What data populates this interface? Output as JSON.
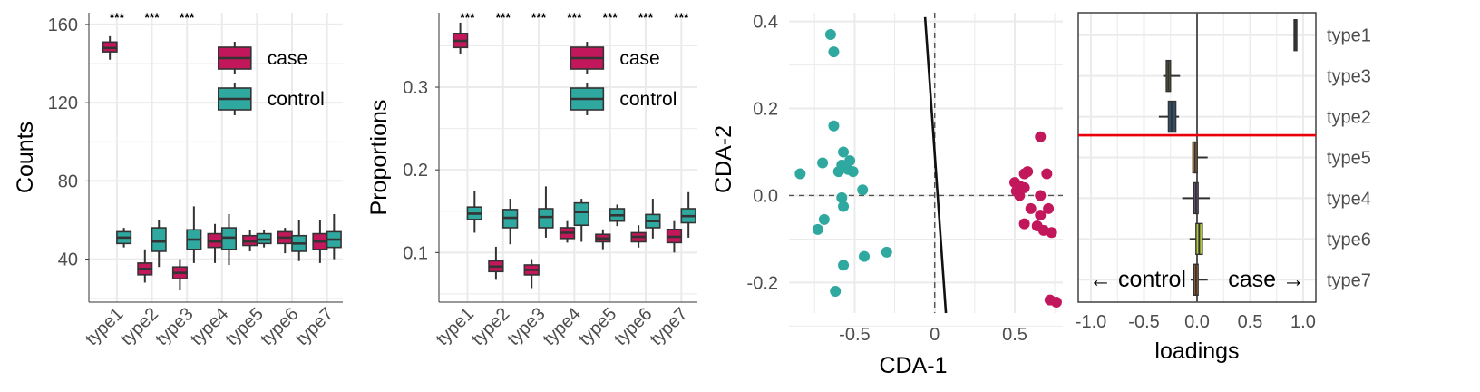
{
  "colors": {
    "case": "#C2185B",
    "control": "#2FA8A0",
    "grid": "#EBEBEB",
    "box_line": "#333333",
    "threshold": "#E8000B"
  },
  "chart_data": [
    {
      "type": "boxplot",
      "ylabel": "Counts",
      "xlabel": "",
      "ylim": [
        18,
        166
      ],
      "yticks": [
        40,
        80,
        120,
        160
      ],
      "categories": [
        "type1",
        "type2",
        "type3",
        "type4",
        "type5",
        "type6",
        "type7"
      ],
      "legend": {
        "position": "top-right",
        "entries": [
          "case",
          "control"
        ]
      },
      "significance": [
        "***",
        "***",
        "***",
        "",
        "",
        "",
        ""
      ],
      "series": [
        {
          "name": "case",
          "color_key": "case",
          "boxes": [
            {
              "min": 142,
              "q1": 146,
              "med": 148,
              "q3": 151,
              "max": 154
            },
            {
              "min": 28,
              "q1": 32,
              "med": 35,
              "q3": 38,
              "max": 45
            },
            {
              "min": 24,
              "q1": 30,
              "med": 33,
              "q3": 36,
              "max": 40
            },
            {
              "min": 38,
              "q1": 46,
              "med": 49,
              "q3": 53,
              "max": 58
            },
            {
              "min": 44,
              "q1": 47,
              "med": 49,
              "q3": 52,
              "max": 55
            },
            {
              "min": 43,
              "q1": 48,
              "med": 51,
              "q3": 54,
              "max": 56
            },
            {
              "min": 38,
              "q1": 45,
              "med": 49,
              "q3": 53,
              "max": 60
            }
          ]
        },
        {
          "name": "control",
          "color_key": "control",
          "boxes": [
            {
              "min": 46,
              "q1": 48,
              "med": 51,
              "q3": 54,
              "max": 56
            },
            {
              "min": 36,
              "q1": 44,
              "med": 49,
              "q3": 56,
              "max": 60
            },
            {
              "min": 38,
              "q1": 45,
              "med": 50,
              "q3": 55,
              "max": 67
            },
            {
              "min": 37,
              "q1": 45,
              "med": 51,
              "q3": 56,
              "max": 63
            },
            {
              "min": 46,
              "q1": 48,
              "med": 50,
              "q3": 53,
              "max": 55
            },
            {
              "min": 39,
              "q1": 44,
              "med": 48,
              "q3": 52,
              "max": 60
            },
            {
              "min": 40,
              "q1": 46,
              "med": 50,
              "q3": 54,
              "max": 63
            }
          ]
        }
      ]
    },
    {
      "type": "boxplot",
      "ylabel": "Proportions",
      "xlabel": "",
      "ylim": [
        0.04,
        0.39
      ],
      "yticks": [
        0.1,
        0.2,
        0.3
      ],
      "categories": [
        "type1",
        "type2",
        "type3",
        "type4",
        "type5",
        "type6",
        "type7"
      ],
      "legend": {
        "position": "top-right",
        "entries": [
          "case",
          "control"
        ]
      },
      "significance": [
        "***",
        "***",
        "***",
        "***",
        "***",
        "***",
        "***"
      ],
      "series": [
        {
          "name": "case",
          "color_key": "case",
          "boxes": [
            {
              "min": 0.34,
              "q1": 0.348,
              "med": 0.356,
              "q3": 0.365,
              "max": 0.378
            },
            {
              "min": 0.067,
              "q1": 0.077,
              "med": 0.083,
              "q3": 0.09,
              "max": 0.107
            },
            {
              "min": 0.057,
              "q1": 0.073,
              "med": 0.079,
              "q3": 0.085,
              "max": 0.092
            },
            {
              "min": 0.112,
              "q1": 0.117,
              "med": 0.124,
              "q3": 0.13,
              "max": 0.138
            },
            {
              "min": 0.104,
              "q1": 0.113,
              "med": 0.117,
              "q3": 0.122,
              "max": 0.128
            },
            {
              "min": 0.106,
              "q1": 0.113,
              "med": 0.119,
              "q3": 0.124,
              "max": 0.133
            },
            {
              "min": 0.1,
              "q1": 0.112,
              "med": 0.119,
              "q3": 0.128,
              "max": 0.138
            }
          ]
        },
        {
          "name": "control",
          "color_key": "control",
          "boxes": [
            {
              "min": 0.124,
              "q1": 0.14,
              "med": 0.147,
              "q3": 0.155,
              "max": 0.175
            },
            {
              "min": 0.11,
              "q1": 0.13,
              "med": 0.142,
              "q3": 0.152,
              "max": 0.165
            },
            {
              "min": 0.118,
              "q1": 0.13,
              "med": 0.143,
              "q3": 0.153,
              "max": 0.18
            },
            {
              "min": 0.113,
              "q1": 0.133,
              "med": 0.149,
              "q3": 0.16,
              "max": 0.165
            },
            {
              "min": 0.132,
              "q1": 0.138,
              "med": 0.145,
              "q3": 0.153,
              "max": 0.158
            },
            {
              "min": 0.117,
              "q1": 0.13,
              "med": 0.138,
              "q3": 0.146,
              "max": 0.165
            },
            {
              "min": 0.118,
              "q1": 0.136,
              "med": 0.144,
              "q3": 0.153,
              "max": 0.173
            }
          ]
        }
      ]
    },
    {
      "type": "scatter",
      "xlabel": "CDA-1",
      "ylabel": "CDA-2",
      "xlim": [
        -0.91,
        0.8
      ],
      "ylim": [
        -0.27,
        0.42
      ],
      "xticks": [
        -0.5,
        0.0,
        0.5
      ],
      "yticks": [
        -0.2,
        0.0,
        0.2,
        0.4
      ],
      "decision_line": [
        [
          -0.06,
          0.41
        ],
        [
          0.07,
          -0.27
        ]
      ],
      "series": [
        {
          "name": "control",
          "color_key": "control",
          "points": [
            [
              -0.65,
              0.37
            ],
            [
              -0.63,
              0.33
            ],
            [
              -0.63,
              0.16
            ],
            [
              -0.84,
              0.05
            ],
            [
              -0.7,
              0.075
            ],
            [
              -0.57,
              0.1
            ],
            [
              -0.53,
              0.08
            ],
            [
              -0.55,
              0.07
            ],
            [
              -0.58,
              0.07
            ],
            [
              -0.6,
              0.055
            ],
            [
              -0.54,
              0.06
            ],
            [
              -0.51,
              0.055
            ],
            [
              -0.45,
              0.013
            ],
            [
              -0.58,
              -0.005
            ],
            [
              -0.57,
              -0.025
            ],
            [
              -0.69,
              -0.055
            ],
            [
              -0.73,
              -0.078
            ],
            [
              -0.3,
              -0.13
            ],
            [
              -0.44,
              -0.14
            ],
            [
              -0.57,
              -0.16
            ],
            [
              -0.62,
              -0.22
            ]
          ]
        },
        {
          "name": "case",
          "color_key": "case",
          "points": [
            [
              0.66,
              0.135
            ],
            [
              0.58,
              0.055
            ],
            [
              0.56,
              0.05
            ],
            [
              0.7,
              0.05
            ],
            [
              0.5,
              0.03
            ],
            [
              0.53,
              0.022
            ],
            [
              0.56,
              0.018
            ],
            [
              0.51,
              0.01
            ],
            [
              0.53,
              0.0
            ],
            [
              0.66,
              0.0
            ],
            [
              0.6,
              -0.03
            ],
            [
              0.71,
              -0.03
            ],
            [
              0.66,
              -0.045
            ],
            [
              0.56,
              -0.065
            ],
            [
              0.64,
              -0.07
            ],
            [
              0.68,
              -0.08
            ],
            [
              0.73,
              -0.085
            ],
            [
              0.72,
              -0.24
            ],
            [
              0.76,
              -0.245
            ]
          ]
        }
      ]
    },
    {
      "type": "boxplot-horizontal",
      "xlabel": "loadings",
      "ylabel": "",
      "xlim": [
        -1.12,
        1.12
      ],
      "xticks": [
        -1.0,
        -0.5,
        0.0,
        0.5,
        1.0
      ],
      "categories": [
        "type1",
        "type3",
        "type2",
        "type5",
        "type4",
        "type6",
        "type7"
      ],
      "threshold_after_index": 2,
      "annotations": [
        "← control",
        "case →"
      ],
      "boxes": [
        {
          "min": 0.91,
          "q1": 0.915,
          "med": 0.925,
          "q3": 0.935,
          "max": 0.945,
          "color": "#1E4D2B"
        },
        {
          "min": -0.32,
          "q1": -0.29,
          "med": -0.27,
          "q3": -0.25,
          "max": -0.16,
          "color": "#556B2F"
        },
        {
          "min": -0.36,
          "q1": -0.27,
          "med": -0.24,
          "q3": -0.2,
          "max": -0.17,
          "color": "#2F4F6F"
        },
        {
          "min": -0.04,
          "q1": -0.04,
          "med": -0.02,
          "q3": 0.0,
          "max": 0.1,
          "color": "#C88A2E"
        },
        {
          "min": -0.14,
          "q1": -0.03,
          "med": -0.01,
          "q3": 0.01,
          "max": 0.12,
          "color": "#7A5C9A"
        },
        {
          "min": -0.07,
          "q1": -0.01,
          "med": 0.02,
          "q3": 0.05,
          "max": 0.12,
          "color": "#B5C93C"
        },
        {
          "min": -0.06,
          "q1": -0.03,
          "med": -0.01,
          "q3": 0.01,
          "max": 0.1,
          "color": "#C8702E"
        }
      ]
    }
  ]
}
